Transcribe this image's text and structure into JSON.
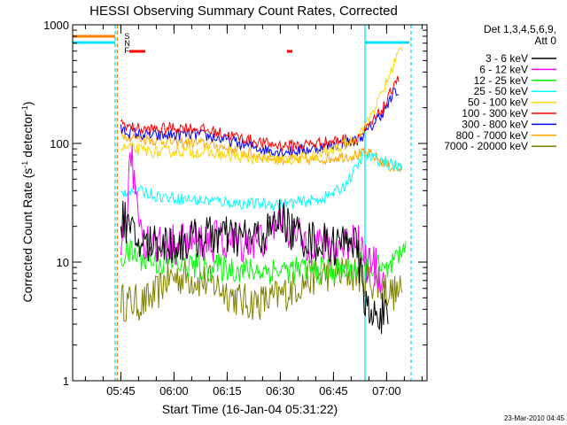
{
  "chart_data": {
    "type": "line",
    "title": "HESSI Observing Summary Count Rates, Corrected",
    "xlabel": "Start Time (16-Jan-04 05:31:22)",
    "ylabel": "Corrected Count Rate (s",
    "ylabel_sup1": "-1",
    "ylabel_mid": " detector",
    "ylabel_sup2": "-1",
    "ylabel_end": ")",
    "yscale": "log",
    "ylim": [
      1,
      1000
    ],
    "x_unit": "minutes since 05:31:22",
    "xlim": [
      0,
      100
    ],
    "yticks": [
      {
        "value": 1,
        "label": "1"
      },
      {
        "value": 10,
        "label": "10"
      },
      {
        "value": 100,
        "label": "100"
      },
      {
        "value": 1000,
        "label": "1000"
      }
    ],
    "xticks": [
      {
        "value": 13.6,
        "label": "05:45"
      },
      {
        "value": 28.6,
        "label": "06:00"
      },
      {
        "value": 43.6,
        "label": "06:15"
      },
      {
        "value": 58.6,
        "label": "06:30"
      },
      {
        "value": 73.6,
        "label": "06:45"
      },
      {
        "value": 88.6,
        "label": "07:00"
      }
    ],
    "legend": {
      "header1": "Det 1,3,4,5,6,9,",
      "header2": "Att 0",
      "position": "right"
    },
    "series": [
      {
        "name": "3 - 6 keV",
        "color": "#000000",
        "points": [
          [
            13.6,
            20
          ],
          [
            14.5,
            24
          ],
          [
            16,
            18
          ],
          [
            18,
            15
          ],
          [
            21,
            14
          ],
          [
            24,
            15
          ],
          [
            28,
            14
          ],
          [
            32,
            15
          ],
          [
            36,
            16
          ],
          [
            40,
            17
          ],
          [
            44,
            16
          ],
          [
            48,
            16
          ],
          [
            52,
            16
          ],
          [
            56,
            18
          ],
          [
            59,
            25
          ],
          [
            61,
            19
          ],
          [
            64,
            17
          ],
          [
            68,
            15
          ],
          [
            72,
            14
          ],
          [
            76,
            14
          ],
          [
            78,
            18
          ],
          [
            80,
            13
          ],
          [
            82,
            6
          ],
          [
            84,
            3
          ],
          [
            86,
            4
          ],
          [
            88,
            3.5
          ],
          [
            89,
            3
          ]
        ]
      },
      {
        "name": "6 - 12 keV",
        "color": "#ff00ff",
        "points": [
          [
            13.6,
            16
          ],
          [
            15,
            20
          ],
          [
            16.5,
            80
          ],
          [
            18,
            35
          ],
          [
            20,
            16
          ],
          [
            24,
            14
          ],
          [
            28,
            14
          ],
          [
            32,
            15
          ],
          [
            36,
            15
          ],
          [
            40,
            15
          ],
          [
            44,
            15
          ],
          [
            48,
            15
          ],
          [
            52,
            15
          ],
          [
            55,
            17
          ],
          [
            58,
            22
          ],
          [
            59,
            25
          ],
          [
            60,
            20
          ],
          [
            63,
            16
          ],
          [
            66,
            15
          ],
          [
            70,
            14
          ],
          [
            74,
            13
          ],
          [
            78,
            15
          ],
          [
            80,
            18
          ],
          [
            81,
            14
          ],
          [
            83,
            10
          ],
          [
            85,
            9
          ],
          [
            87,
            8
          ],
          [
            88,
            6
          ]
        ]
      },
      {
        "name": "12 - 25 keV",
        "color": "#00ff00",
        "points": [
          [
            13.6,
            11
          ],
          [
            16,
            12
          ],
          [
            20,
            11
          ],
          [
            24,
            10
          ],
          [
            28,
            10
          ],
          [
            32,
            9.5
          ],
          [
            36,
            9
          ],
          [
            40,
            9
          ],
          [
            44,
            9
          ],
          [
            48,
            8.5
          ],
          [
            52,
            8.5
          ],
          [
            56,
            8.5
          ],
          [
            60,
            8.5
          ],
          [
            64,
            8.5
          ],
          [
            68,
            8.5
          ],
          [
            72,
            8.5
          ],
          [
            76,
            8.5
          ],
          [
            80,
            9
          ],
          [
            84,
            10
          ],
          [
            88,
            8
          ],
          [
            90,
            9
          ],
          [
            92,
            10
          ],
          [
            94,
            15
          ]
        ]
      },
      {
        "name": "25 - 50 keV",
        "color": "#00ffff",
        "points": [
          [
            13.6,
            38
          ],
          [
            16,
            40
          ],
          [
            20,
            39
          ],
          [
            24,
            36
          ],
          [
            28,
            35
          ],
          [
            32,
            34
          ],
          [
            36,
            33
          ],
          [
            40,
            33
          ],
          [
            44,
            32
          ],
          [
            48,
            31
          ],
          [
            52,
            31
          ],
          [
            56,
            31
          ],
          [
            60,
            31
          ],
          [
            64,
            32
          ],
          [
            68,
            33
          ],
          [
            72,
            36
          ],
          [
            76,
            42
          ],
          [
            79,
            55
          ],
          [
            82,
            80
          ],
          [
            85,
            75
          ],
          [
            88,
            70
          ],
          [
            91,
            65
          ],
          [
            93,
            62
          ]
        ]
      },
      {
        "name": "50 - 100 keV",
        "color": "#ffd700",
        "points": [
          [
            13.6,
            90
          ],
          [
            16,
            92
          ],
          [
            20,
            87
          ],
          [
            24,
            84
          ],
          [
            28,
            86
          ],
          [
            32,
            86
          ],
          [
            36,
            84
          ],
          [
            40,
            82
          ],
          [
            44,
            78
          ],
          [
            48,
            76
          ],
          [
            52,
            74
          ],
          [
            56,
            72
          ],
          [
            60,
            72
          ],
          [
            64,
            74
          ],
          [
            68,
            78
          ],
          [
            72,
            85
          ],
          [
            76,
            95
          ],
          [
            80,
            110
          ],
          [
            83,
            150
          ],
          [
            86,
            220
          ],
          [
            89,
            350
          ],
          [
            92,
            600
          ],
          [
            93,
            600
          ]
        ]
      },
      {
        "name": "100 - 300 keV",
        "color": "#ff0000",
        "points": [
          [
            13.6,
            150
          ],
          [
            14.5,
            145
          ],
          [
            16,
            138
          ],
          [
            20,
            130
          ],
          [
            24,
            132
          ],
          [
            28,
            135
          ],
          [
            32,
            136
          ],
          [
            36,
            132
          ],
          [
            40,
            125
          ],
          [
            44,
            118
          ],
          [
            48,
            110
          ],
          [
            52,
            103
          ],
          [
            56,
            98
          ],
          [
            60,
            96
          ],
          [
            64,
            97
          ],
          [
            68,
            100
          ],
          [
            72,
            103
          ],
          [
            76,
            107
          ],
          [
            80,
            110
          ],
          [
            83,
            130
          ],
          [
            86,
            170
          ],
          [
            89,
            230
          ],
          [
            91,
            350
          ],
          [
            92,
            330
          ]
        ]
      },
      {
        "name": "300 - 800 keV",
        "color": "#0000ff",
        "points": [
          [
            13.6,
            130
          ],
          [
            16,
            125
          ],
          [
            20,
            118
          ],
          [
            24,
            115
          ],
          [
            28,
            118
          ],
          [
            32,
            120
          ],
          [
            36,
            118
          ],
          [
            40,
            112
          ],
          [
            44,
            106
          ],
          [
            48,
            98
          ],
          [
            52,
            92
          ],
          [
            56,
            87
          ],
          [
            60,
            86
          ],
          [
            64,
            87
          ],
          [
            68,
            90
          ],
          [
            72,
            95
          ],
          [
            76,
            100
          ],
          [
            80,
            105
          ],
          [
            83,
            125
          ],
          [
            86,
            160
          ],
          [
            89,
            210
          ],
          [
            91,
            280
          ],
          [
            92,
            260
          ]
        ]
      },
      {
        "name": "800 - 7000 keV",
        "color": "#ffa500",
        "points": [
          [
            13.6,
            125
          ],
          [
            16,
            115
          ],
          [
            20,
            110
          ],
          [
            24,
            106
          ],
          [
            28,
            103
          ],
          [
            32,
            102
          ],
          [
            36,
            100
          ],
          [
            40,
            96
          ],
          [
            44,
            91
          ],
          [
            48,
            84
          ],
          [
            52,
            79
          ],
          [
            56,
            76
          ],
          [
            60,
            73
          ],
          [
            64,
            72
          ],
          [
            68,
            73
          ],
          [
            72,
            75
          ],
          [
            76,
            78
          ],
          [
            80,
            80
          ],
          [
            83,
            82
          ],
          [
            86,
            75
          ],
          [
            89,
            65
          ],
          [
            91,
            62
          ],
          [
            93,
            60
          ]
        ]
      },
      {
        "name": "7000 - 20000 keV",
        "color": "#808000",
        "points": [
          [
            13.6,
            5
          ],
          [
            14.5,
            4.5
          ],
          [
            16,
            4.6
          ],
          [
            20,
            4.5
          ],
          [
            24,
            5.5
          ],
          [
            26,
            7
          ],
          [
            28,
            7.5
          ],
          [
            32,
            7.5
          ],
          [
            36,
            7
          ],
          [
            40,
            6.5
          ],
          [
            44,
            5.5
          ],
          [
            48,
            4.6
          ],
          [
            52,
            4.6
          ],
          [
            56,
            4.8
          ],
          [
            60,
            5.5
          ],
          [
            64,
            6.5
          ],
          [
            68,
            7.5
          ],
          [
            72,
            8
          ],
          [
            76,
            8
          ],
          [
            80,
            8
          ],
          [
            84,
            7
          ],
          [
            88,
            6
          ],
          [
            90,
            5.5
          ],
          [
            93,
            5.5
          ]
        ]
      }
    ],
    "flag_labels": [
      "S",
      "N",
      "F"
    ],
    "date_stamp": "23-Mar-2010 04:45"
  }
}
